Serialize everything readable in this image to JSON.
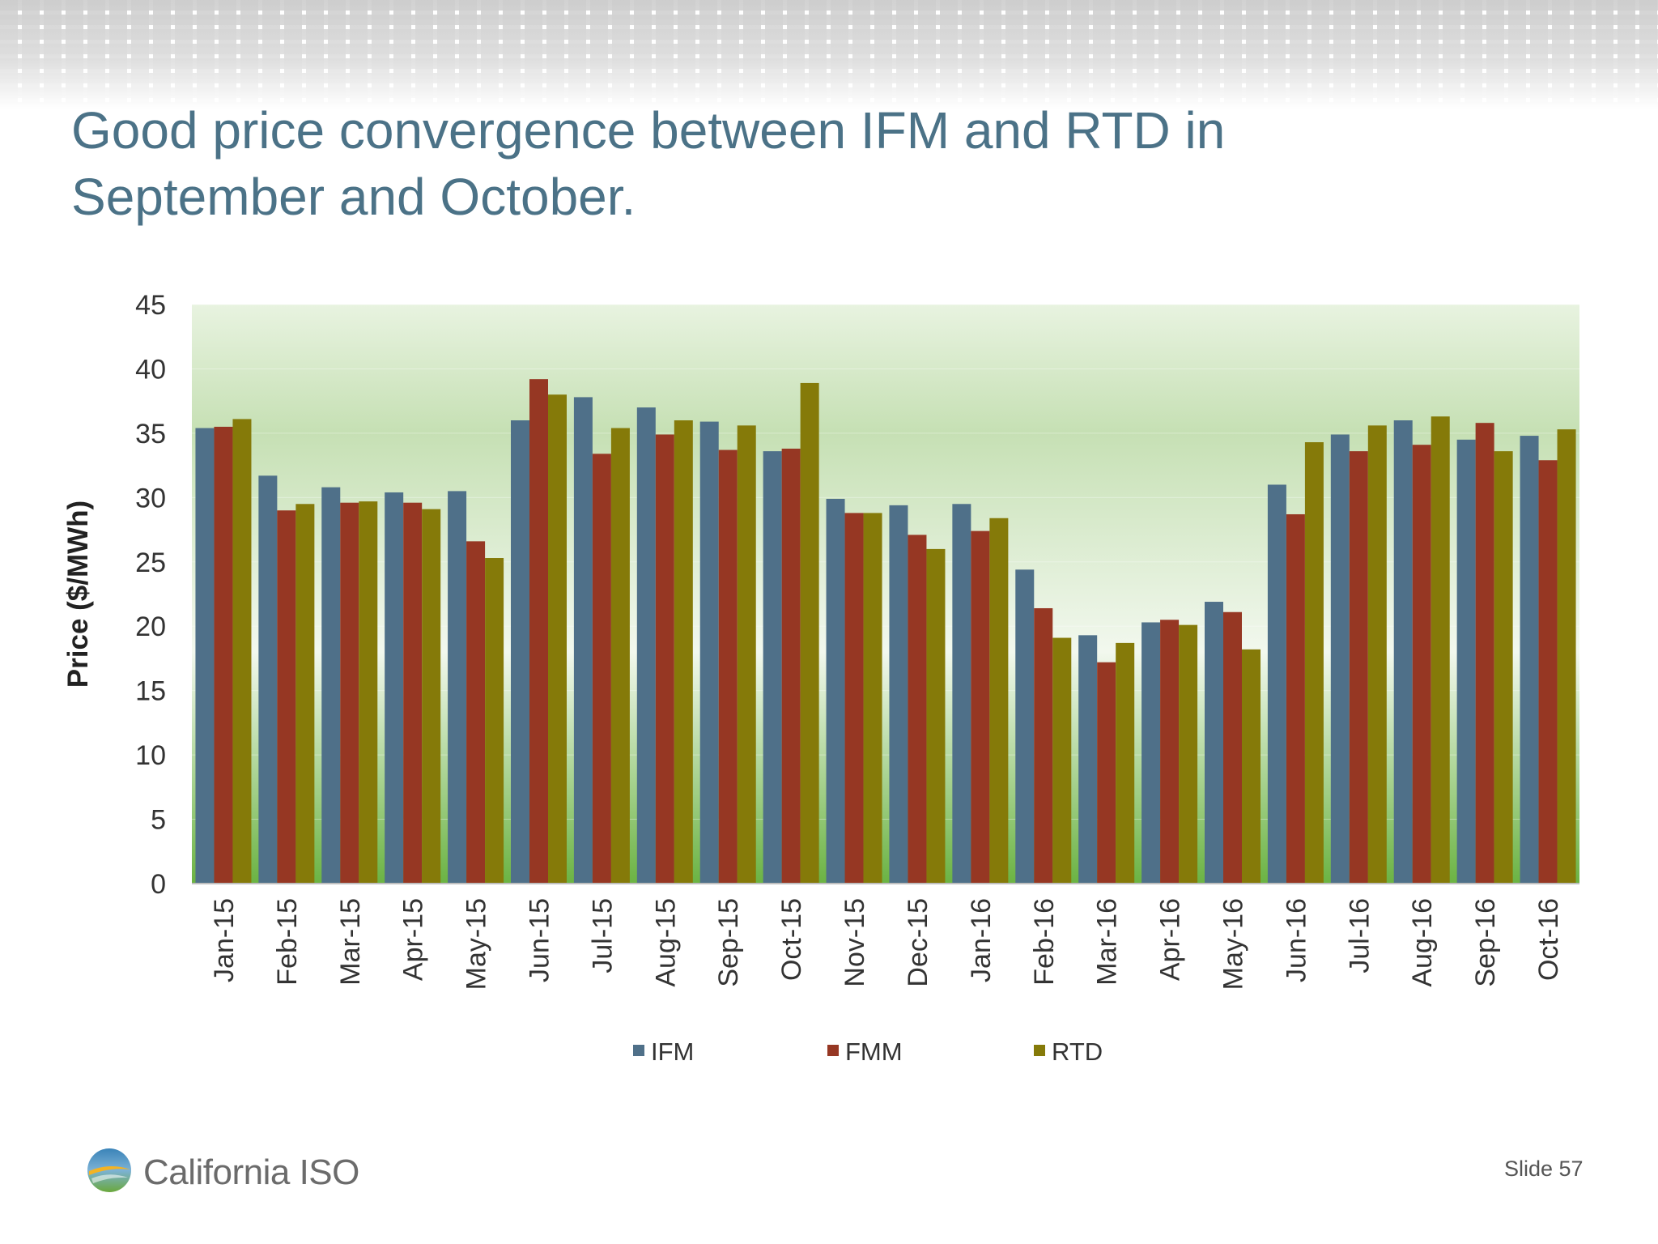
{
  "slide": {
    "title_lines": [
      "Good price convergence between IFM and RTD in",
      "September and October."
    ],
    "logo_text": "California ISO",
    "slide_number": "Slide 57"
  },
  "colors": {
    "title": "#4b7287",
    "IFM": "#4f7089",
    "FMM": "#963723",
    "RTD": "#857a09",
    "plot_top": "#e8f3e0",
    "plot_bottom": "#6bb343"
  },
  "chart_data": {
    "type": "bar",
    "title": "",
    "xlabel": "",
    "ylabel": "Price ($/MWh)",
    "ylim": [
      0,
      45
    ],
    "yticks": [
      0,
      5,
      10,
      15,
      20,
      25,
      30,
      35,
      40,
      45
    ],
    "grid": true,
    "legend_position": "bottom",
    "categories": [
      "Jan-15",
      "Feb-15",
      "Mar-15",
      "Apr-15",
      "May-15",
      "Jun-15",
      "Jul-15",
      "Aug-15",
      "Sep-15",
      "Oct-15",
      "Nov-15",
      "Dec-15",
      "Jan-16",
      "Feb-16",
      "Mar-16",
      "Apr-16",
      "May-16",
      "Jun-16",
      "Jul-16",
      "Aug-16",
      "Sep-16",
      "Oct-16"
    ],
    "series": [
      {
        "name": "IFM",
        "values": [
          35.4,
          31.7,
          30.8,
          30.4,
          30.5,
          36.0,
          37.8,
          37.0,
          35.9,
          33.6,
          29.9,
          29.4,
          29.5,
          24.4,
          19.3,
          20.3,
          21.9,
          31.0,
          34.9,
          36.0,
          34.5,
          34.8
        ]
      },
      {
        "name": "FMM",
        "values": [
          35.5,
          29.0,
          29.6,
          29.6,
          26.6,
          39.2,
          33.4,
          34.9,
          33.7,
          33.8,
          28.8,
          27.1,
          27.4,
          21.4,
          17.2,
          20.5,
          21.1,
          28.7,
          33.6,
          34.1,
          35.8,
          32.9
        ]
      },
      {
        "name": "RTD",
        "values": [
          36.1,
          29.5,
          29.7,
          29.1,
          25.3,
          38.0,
          35.4,
          36.0,
          35.6,
          38.9,
          28.8,
          26.0,
          28.4,
          19.1,
          18.7,
          20.1,
          18.2,
          34.3,
          35.6,
          36.3,
          33.6,
          35.3
        ]
      }
    ]
  }
}
